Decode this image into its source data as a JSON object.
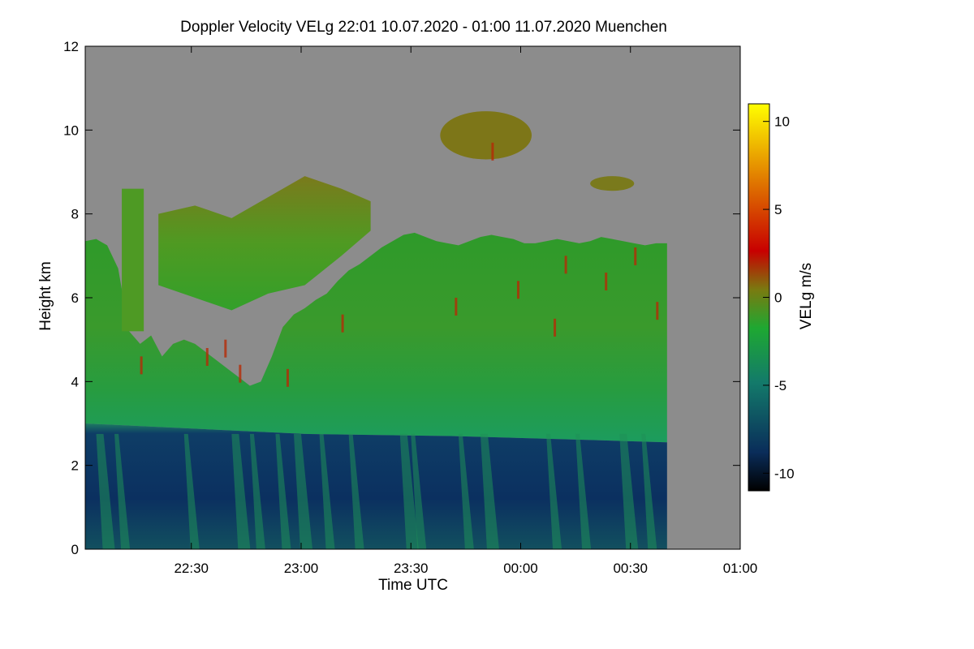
{
  "chart_data": {
    "type": "heatmap",
    "title": "Doppler Velocity VELg   22:01 10.07.2020 - 01:00 11.07.2020 Muenchen",
    "xlabel": "Time UTC",
    "ylabel": "Height km",
    "colorbar_label": "VELg m/s",
    "x_range": [
      "22:01",
      "01:00"
    ],
    "x_ticks": [
      "22:30",
      "23:00",
      "23:30",
      "00:00",
      "00:30",
      "01:00"
    ],
    "y_range": [
      0,
      12
    ],
    "y_ticks": [
      0,
      2,
      4,
      6,
      8,
      10,
      12
    ],
    "colorbar_range": [
      -11,
      11
    ],
    "colorbar_ticks": [
      10,
      5,
      0,
      -5,
      -10
    ],
    "background_color": "#8c8c8c",
    "colormap": [
      "#000000",
      "#0a2d5a",
      "#137a6a",
      "#1ea832",
      "#7a7a10",
      "#c80000",
      "#e07800",
      "#ffff00"
    ],
    "regions": {
      "cloud_top_profile_km": [
        [
          0,
          7.35
        ],
        [
          3,
          7.4
        ],
        [
          6,
          7.25
        ],
        [
          9,
          6.7
        ],
        [
          12,
          5.2
        ],
        [
          15,
          4.9
        ],
        [
          18,
          5.1
        ],
        [
          21,
          4.6
        ],
        [
          24,
          4.9
        ],
        [
          27,
          5.0
        ],
        [
          30,
          4.9
        ],
        [
          33,
          4.7
        ],
        [
          36,
          4.5
        ],
        [
          39,
          4.3
        ],
        [
          42,
          4.1
        ],
        [
          45,
          3.9
        ],
        [
          48,
          4.0
        ],
        [
          51,
          4.6
        ],
        [
          54,
          5.3
        ],
        [
          57,
          5.6
        ],
        [
          60,
          5.75
        ],
        [
          63,
          5.95
        ],
        [
          66,
          6.1
        ],
        [
          69,
          6.4
        ],
        [
          72,
          6.65
        ],
        [
          75,
          6.8
        ],
        [
          78,
          7.0
        ],
        [
          81,
          7.2
        ],
        [
          84,
          7.35
        ],
        [
          87,
          7.5
        ],
        [
          90,
          7.55
        ],
        [
          93,
          7.45
        ],
        [
          96,
          7.35
        ],
        [
          99,
          7.3
        ],
        [
          102,
          7.25
        ],
        [
          105,
          7.35
        ],
        [
          108,
          7.45
        ],
        [
          111,
          7.5
        ],
        [
          114,
          7.45
        ],
        [
          117,
          7.4
        ],
        [
          120,
          7.3
        ],
        [
          123,
          7.3
        ],
        [
          126,
          7.35
        ],
        [
          129,
          7.4
        ],
        [
          132,
          7.35
        ],
        [
          135,
          7.3
        ],
        [
          138,
          7.35
        ],
        [
          141,
          7.45
        ],
        [
          144,
          7.4
        ],
        [
          147,
          7.35
        ],
        [
          150,
          7.3
        ],
        [
          153,
          7.25
        ],
        [
          156,
          7.3
        ],
        [
          159,
          7.3
        ]
      ],
      "melting_layer_km": [
        [
          0,
          3.0
        ],
        [
          60,
          2.75
        ],
        [
          100,
          2.7
        ],
        [
          140,
          2.6
        ],
        [
          159,
          2.55
        ]
      ],
      "upper_cloud_top_km": [
        [
          20,
          8.0
        ],
        [
          30,
          8.2
        ],
        [
          40,
          7.9
        ],
        [
          50,
          8.4
        ],
        [
          60,
          8.9
        ],
        [
          70,
          8.6
        ],
        [
          78,
          8.3
        ]
      ],
      "upper_cloud_base_km": [
        [
          20,
          6.3
        ],
        [
          30,
          6.0
        ],
        [
          40,
          5.7
        ],
        [
          50,
          6.1
        ],
        [
          60,
          6.3
        ],
        [
          70,
          7.0
        ],
        [
          78,
          7.6
        ]
      ],
      "cirrus_high_km": {
        "t_start": 97,
        "t_end": 122,
        "top": 10.45,
        "base": 9.3
      },
      "cirrus_right_km": {
        "t_start": 138,
        "t_end": 150,
        "top": 8.9,
        "base": 8.55
      },
      "pillar_left_km": {
        "t_start": 10,
        "t_end": 16,
        "top": 8.6,
        "base": 5.2
      }
    }
  }
}
